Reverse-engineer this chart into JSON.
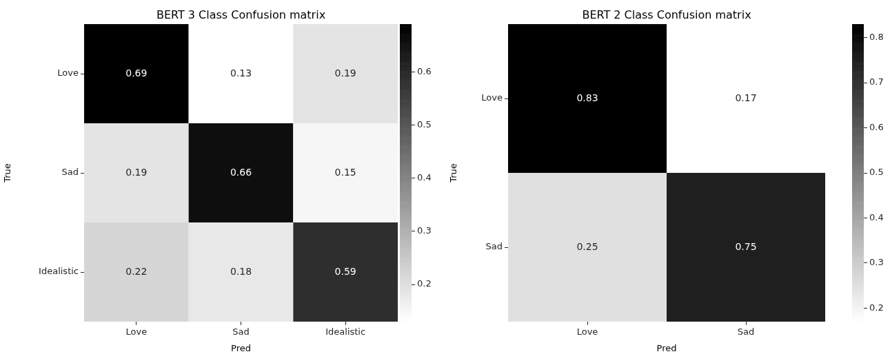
{
  "chart_data": [
    {
      "type": "heatmap",
      "title": "BERT 3 Class Confusion matrix",
      "xlabel": "Pred",
      "ylabel": "True",
      "categories": [
        "Love",
        "Sad",
        "Idealistic"
      ],
      "y_categories": [
        "Love",
        "Sad",
        "Idealistic"
      ],
      "cells": [
        [
          0.69,
          0.13,
          0.19
        ],
        [
          0.19,
          0.66,
          0.15
        ],
        [
          0.22,
          0.18,
          0.59
        ]
      ],
      "clim": [
        0.13,
        0.69
      ],
      "cticks": [
        0.2,
        0.3,
        0.4,
        0.5,
        0.6
      ],
      "data_labels": true
    },
    {
      "type": "heatmap",
      "title": "BERT 2 Class Confusion matrix",
      "xlabel": "Pred",
      "ylabel": "True",
      "categories": [
        "Love",
        "Sad"
      ],
      "y_categories": [
        "Love",
        "Sad"
      ],
      "cells": [
        [
          0.83,
          0.17
        ],
        [
          0.25,
          0.75
        ]
      ],
      "clim": [
        0.17,
        0.83
      ],
      "cticks": [
        0.2,
        0.3,
        0.4,
        0.5,
        0.6,
        0.7,
        0.8
      ],
      "data_labels": true
    }
  ]
}
